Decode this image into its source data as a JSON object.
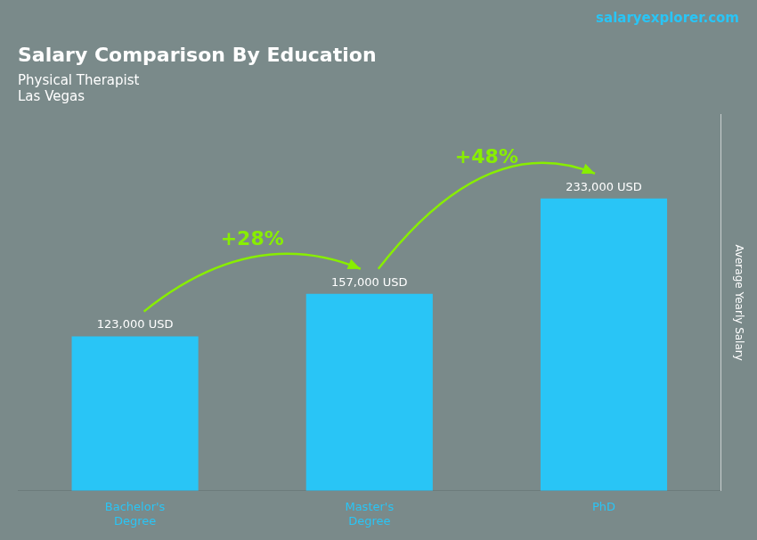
{
  "chart_data": {
    "type": "bar",
    "title": "Salary Comparison By Education",
    "subtitle": [
      "Physical Therapist",
      "Las Vegas"
    ],
    "y_label": "Average Yearly Salary",
    "categories": [
      "Bachelor's\nDegree",
      "Master's\nDegree",
      "PhD"
    ],
    "values": [
      123000,
      157000,
      233000
    ],
    "value_labels": [
      "123,000 USD",
      "157,000 USD",
      "233,000 USD"
    ],
    "data_labels": true,
    "color": "#29c5f6",
    "ylim": [
      0,
      300000
    ],
    "grid": false,
    "tick_labels": "x",
    "annotations": [
      "+28%",
      "+48%",
      "salaryexplorer.com"
    ]
  }
}
